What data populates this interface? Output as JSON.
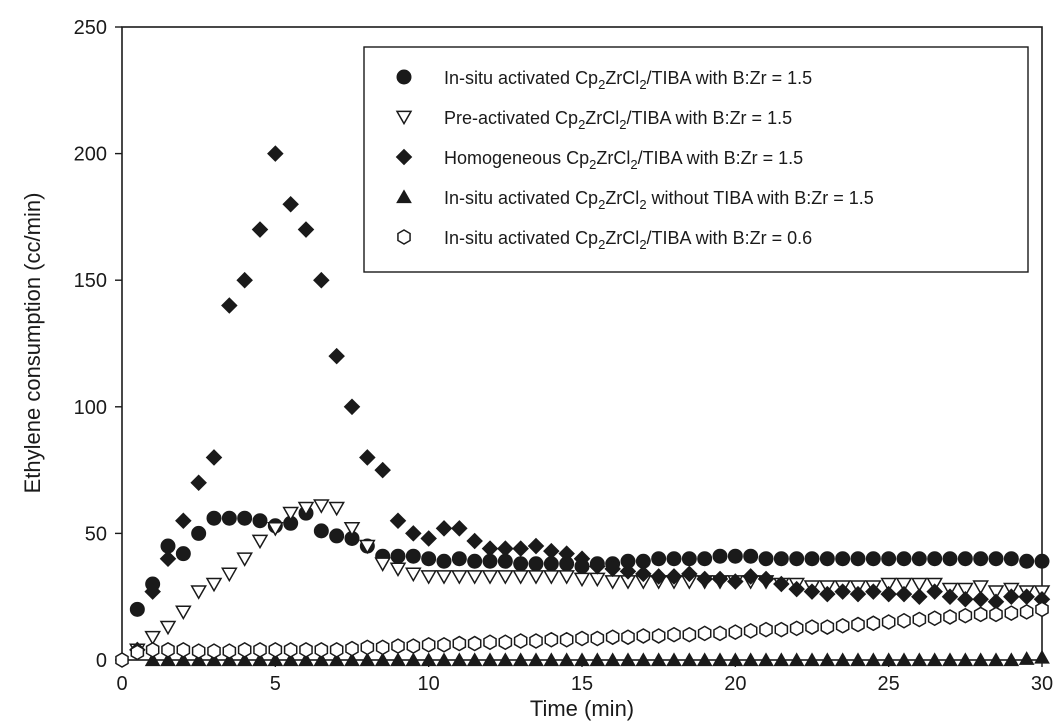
{
  "chart_data": {
    "type": "scatter",
    "title": "",
    "xlabel": "Time (min)",
    "ylabel": "Ethylene consumption (cc/min)",
    "xlim": [
      0,
      30
    ],
    "ylim": [
      0,
      250
    ],
    "x_ticks": [
      0,
      5,
      10,
      15,
      20,
      25,
      30
    ],
    "y_ticks": [
      0,
      50,
      100,
      150,
      200,
      250
    ],
    "grid": false,
    "legend_position": "top-right",
    "series": [
      {
        "name": "In-situ activated Cp2ZrCl2/TIBA with B:Zr = 1.5",
        "legend": {
          "pre": "In-situ activated Cp",
          "s1": "2",
          "mid": "ZrCl",
          "s2": "2",
          "post": "/TIBA with B:Zr = 1.5"
        },
        "marker": "circle-filled",
        "color": "#1a1a1a",
        "points": [
          [
            0.5,
            20
          ],
          [
            1,
            30
          ],
          [
            1.5,
            45
          ],
          [
            2,
            42
          ],
          [
            2.5,
            50
          ],
          [
            3,
            56
          ],
          [
            3.5,
            56
          ],
          [
            4,
            56
          ],
          [
            4.5,
            55
          ],
          [
            5,
            53
          ],
          [
            5.5,
            54
          ],
          [
            6,
            58
          ],
          [
            6.5,
            51
          ],
          [
            7,
            49
          ],
          [
            7.5,
            48
          ],
          [
            8,
            45
          ],
          [
            8.5,
            41
          ],
          [
            9,
            41
          ],
          [
            9.5,
            41
          ],
          [
            10,
            40
          ],
          [
            10.5,
            39
          ],
          [
            11,
            40
          ],
          [
            11.5,
            39
          ],
          [
            12,
            39
          ],
          [
            12.5,
            39
          ],
          [
            13,
            38
          ],
          [
            13.5,
            38
          ],
          [
            14,
            38
          ],
          [
            14.5,
            38
          ],
          [
            15,
            37
          ],
          [
            15.5,
            38
          ],
          [
            16,
            38
          ],
          [
            16.5,
            39
          ],
          [
            17,
            39
          ],
          [
            17.5,
            40
          ],
          [
            18,
            40
          ],
          [
            18.5,
            40
          ],
          [
            19,
            40
          ],
          [
            19.5,
            41
          ],
          [
            20,
            41
          ],
          [
            20.5,
            41
          ],
          [
            21,
            40
          ],
          [
            21.5,
            40
          ],
          [
            22,
            40
          ],
          [
            22.5,
            40
          ],
          [
            23,
            40
          ],
          [
            23.5,
            40
          ],
          [
            24,
            40
          ],
          [
            24.5,
            40
          ],
          [
            25,
            40
          ],
          [
            25.5,
            40
          ],
          [
            26,
            40
          ],
          [
            26.5,
            40
          ],
          [
            27,
            40
          ],
          [
            27.5,
            40
          ],
          [
            28,
            40
          ],
          [
            28.5,
            40
          ],
          [
            29,
            40
          ],
          [
            29.5,
            39
          ],
          [
            30,
            39
          ]
        ]
      },
      {
        "name": "Pre-activated Cp2ZrCl2/TIBA with B:Zr = 1.5",
        "legend": {
          "pre": "Pre-activated Cp",
          "s1": "2",
          "mid": "ZrCl",
          "s2": "2",
          "post": "/TIBA with B:Zr = 1.5"
        },
        "marker": "triangle-down-open",
        "color": "#1a1a1a",
        "points": [
          [
            0.5,
            4
          ],
          [
            1,
            9
          ],
          [
            1.5,
            13
          ],
          [
            2,
            19
          ],
          [
            2.5,
            27
          ],
          [
            3,
            30
          ],
          [
            3.5,
            34
          ],
          [
            4,
            40
          ],
          [
            4.5,
            47
          ],
          [
            5,
            52
          ],
          [
            5.5,
            58
          ],
          [
            6,
            60
          ],
          [
            6.5,
            61
          ],
          [
            7,
            60
          ],
          [
            7.5,
            52
          ],
          [
            8,
            45
          ],
          [
            8.5,
            38
          ],
          [
            9,
            36
          ],
          [
            9.5,
            34
          ],
          [
            10,
            33
          ],
          [
            10.5,
            33
          ],
          [
            11,
            33
          ],
          [
            11.5,
            33
          ],
          [
            12,
            33
          ],
          [
            12.5,
            33
          ],
          [
            13,
            33
          ],
          [
            13.5,
            33
          ],
          [
            14,
            33
          ],
          [
            14.5,
            33
          ],
          [
            15,
            32
          ],
          [
            15.5,
            32
          ],
          [
            16,
            31
          ],
          [
            16.5,
            31
          ],
          [
            17,
            31
          ],
          [
            17.5,
            31
          ],
          [
            18,
            31
          ],
          [
            18.5,
            31
          ],
          [
            19,
            31
          ],
          [
            19.5,
            31
          ],
          [
            20,
            31
          ],
          [
            20.5,
            31
          ],
          [
            21,
            31
          ],
          [
            21.5,
            30
          ],
          [
            22,
            30
          ],
          [
            22.5,
            29
          ],
          [
            23,
            29
          ],
          [
            23.5,
            29
          ],
          [
            24,
            29
          ],
          [
            24.5,
            29
          ],
          [
            25,
            30
          ],
          [
            25.5,
            30
          ],
          [
            26,
            30
          ],
          [
            26.5,
            30
          ],
          [
            27,
            28
          ],
          [
            27.5,
            28
          ],
          [
            28,
            29
          ],
          [
            28.5,
            27
          ],
          [
            29,
            28
          ],
          [
            29.5,
            27
          ],
          [
            30,
            27
          ]
        ]
      },
      {
        "name": "Homogeneous Cp2ZrCl2/TIBA with B:Zr = 1.5",
        "legend": {
          "pre": "Homogeneous Cp",
          "s1": "2",
          "mid": "ZrCl",
          "s2": "2",
          "post": "/TIBA with B:Zr = 1.5"
        },
        "marker": "diamond-filled",
        "color": "#1a1a1a",
        "points": [
          [
            0.5,
            4
          ],
          [
            1,
            27
          ],
          [
            1.5,
            40
          ],
          [
            2,
            55
          ],
          [
            2.5,
            70
          ],
          [
            3,
            80
          ],
          [
            3.5,
            140
          ],
          [
            4,
            150
          ],
          [
            4.5,
            170
          ],
          [
            5,
            200
          ],
          [
            5.5,
            180
          ],
          [
            6,
            170
          ],
          [
            6.5,
            150
          ],
          [
            7,
            120
          ],
          [
            7.5,
            100
          ],
          [
            8,
            80
          ],
          [
            8.5,
            75
          ],
          [
            9,
            55
          ],
          [
            9.5,
            50
          ],
          [
            10,
            48
          ],
          [
            10.5,
            52
          ],
          [
            11,
            52
          ],
          [
            11.5,
            47
          ],
          [
            12,
            44
          ],
          [
            12.5,
            44
          ],
          [
            13,
            44
          ],
          [
            13.5,
            45
          ],
          [
            14,
            43
          ],
          [
            14.5,
            42
          ],
          [
            15,
            40
          ],
          [
            15.5,
            37
          ],
          [
            16,
            36
          ],
          [
            16.5,
            35
          ],
          [
            17,
            34
          ],
          [
            17.5,
            33
          ],
          [
            18,
            33
          ],
          [
            18.5,
            34
          ],
          [
            19,
            32
          ],
          [
            19.5,
            32
          ],
          [
            20,
            31
          ],
          [
            20.5,
            33
          ],
          [
            21,
            32
          ],
          [
            21.5,
            30
          ],
          [
            22,
            28
          ],
          [
            22.5,
            27
          ],
          [
            23,
            26
          ],
          [
            23.5,
            27
          ],
          [
            24,
            26
          ],
          [
            24.5,
            27
          ],
          [
            25,
            26
          ],
          [
            25.5,
            26
          ],
          [
            26,
            25
          ],
          [
            26.5,
            27
          ],
          [
            27,
            25
          ],
          [
            27.5,
            24
          ],
          [
            28,
            24
          ],
          [
            28.5,
            23
          ],
          [
            29,
            25
          ],
          [
            29.5,
            25
          ],
          [
            30,
            24
          ]
        ]
      },
      {
        "name": "In-situ activated Cp2ZrCl2 without TIBA with B:Zr = 1.5",
        "legend": {
          "pre": "In-situ activated Cp",
          "s1": "2",
          "mid": "ZrCl",
          "s2": "2",
          "post": " without TIBA with B:Zr = 1.5"
        },
        "marker": "triangle-up-filled",
        "color": "#1a1a1a",
        "points": [
          [
            1,
            0
          ],
          [
            1.5,
            0
          ],
          [
            2,
            0
          ],
          [
            2.5,
            0
          ],
          [
            3,
            0
          ],
          [
            3.5,
            0
          ],
          [
            4,
            0
          ],
          [
            4.5,
            0
          ],
          [
            5,
            0
          ],
          [
            5.5,
            0
          ],
          [
            6,
            0
          ],
          [
            6.5,
            0
          ],
          [
            7,
            0
          ],
          [
            7.5,
            0
          ],
          [
            8,
            0
          ],
          [
            8.5,
            0
          ],
          [
            9,
            0
          ],
          [
            9.5,
            0
          ],
          [
            10,
            0
          ],
          [
            10.5,
            0
          ],
          [
            11,
            0
          ],
          [
            11.5,
            0
          ],
          [
            12,
            0
          ],
          [
            12.5,
            0
          ],
          [
            13,
            0
          ],
          [
            13.5,
            0
          ],
          [
            14,
            0
          ],
          [
            14.5,
            0
          ],
          [
            15,
            0
          ],
          [
            15.5,
            0
          ],
          [
            16,
            0
          ],
          [
            16.5,
            0
          ],
          [
            17,
            0
          ],
          [
            17.5,
            0
          ],
          [
            18,
            0
          ],
          [
            18.5,
            0
          ],
          [
            19,
            0
          ],
          [
            19.5,
            0
          ],
          [
            20,
            0
          ],
          [
            20.5,
            0
          ],
          [
            21,
            0
          ],
          [
            21.5,
            0
          ],
          [
            22,
            0
          ],
          [
            22.5,
            0
          ],
          [
            23,
            0
          ],
          [
            23.5,
            0
          ],
          [
            24,
            0
          ],
          [
            24.5,
            0
          ],
          [
            25,
            0
          ],
          [
            25.5,
            0
          ],
          [
            26,
            0
          ],
          [
            26.5,
            0
          ],
          [
            27,
            0
          ],
          [
            27.5,
            0
          ],
          [
            28,
            0
          ],
          [
            28.5,
            0
          ],
          [
            29,
            0
          ],
          [
            29.5,
            0.5
          ],
          [
            30,
            1
          ]
        ]
      },
      {
        "name": "In-situ activated Cp2ZrCl2/TIBA with B:Zr = 0.6",
        "legend": {
          "pre": "In-situ activated Cp",
          "s1": "2",
          "mid": "ZrCl",
          "s2": "2",
          "post": "/TIBA with B:Zr = 0.6"
        },
        "marker": "hexagon-open",
        "color": "#1a1a1a",
        "points": [
          [
            0,
            0
          ],
          [
            0.5,
            3
          ],
          [
            1,
            4
          ],
          [
            1.5,
            4
          ],
          [
            2,
            4
          ],
          [
            2.5,
            3.5
          ],
          [
            3,
            3.5
          ],
          [
            3.5,
            3.5
          ],
          [
            4,
            4
          ],
          [
            4.5,
            4
          ],
          [
            5,
            4
          ],
          [
            5.5,
            4
          ],
          [
            6,
            4
          ],
          [
            6.5,
            4
          ],
          [
            7,
            4
          ],
          [
            7.5,
            4.5
          ],
          [
            8,
            5
          ],
          [
            8.5,
            5
          ],
          [
            9,
            5.5
          ],
          [
            9.5,
            5.5
          ],
          [
            10,
            6
          ],
          [
            10.5,
            6
          ],
          [
            11,
            6.5
          ],
          [
            11.5,
            6.5
          ],
          [
            12,
            7
          ],
          [
            12.5,
            7
          ],
          [
            13,
            7.5
          ],
          [
            13.5,
            7.5
          ],
          [
            14,
            8
          ],
          [
            14.5,
            8
          ],
          [
            15,
            8.5
          ],
          [
            15.5,
            8.5
          ],
          [
            16,
            9
          ],
          [
            16.5,
            9
          ],
          [
            17,
            9.5
          ],
          [
            17.5,
            9.5
          ],
          [
            18,
            10
          ],
          [
            18.5,
            10
          ],
          [
            19,
            10.5
          ],
          [
            19.5,
            10.5
          ],
          [
            20,
            11
          ],
          [
            20.5,
            11.5
          ],
          [
            21,
            12
          ],
          [
            21.5,
            12
          ],
          [
            22,
            12.5
          ],
          [
            22.5,
            13
          ],
          [
            23,
            13
          ],
          [
            23.5,
            13.5
          ],
          [
            24,
            14
          ],
          [
            24.5,
            14.5
          ],
          [
            25,
            15
          ],
          [
            25.5,
            15.5
          ],
          [
            26,
            16
          ],
          [
            26.5,
            16.5
          ],
          [
            27,
            17
          ],
          [
            27.5,
            17.5
          ],
          [
            28,
            18
          ],
          [
            28.5,
            18
          ],
          [
            29,
            18.5
          ],
          [
            29.5,
            19
          ],
          [
            30,
            20
          ]
        ]
      }
    ]
  }
}
